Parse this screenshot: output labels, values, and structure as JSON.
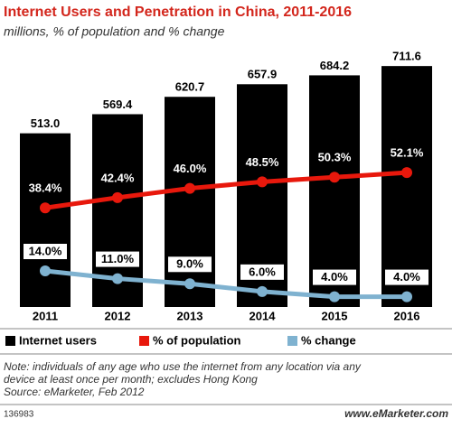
{
  "chart_data": {
    "type": "bar",
    "title": "Internet Users and Penetration in China, 2011-2016",
    "subtitle": "millions, % of population and % change",
    "categories": [
      "2011",
      "2012",
      "2013",
      "2014",
      "2015",
      "2016"
    ],
    "ylim": [
      0,
      800
    ],
    "y2lim": [
      0,
      105
    ],
    "series": [
      {
        "name": "Internet users",
        "type": "bar",
        "color": "#000000",
        "values": [
          513.0,
          569.4,
          620.7,
          657.9,
          684.2,
          711.6
        ],
        "value_labels": [
          "513.0",
          "569.4",
          "620.7",
          "657.9",
          "684.2",
          "711.6"
        ]
      },
      {
        "name": "% of population",
        "type": "line",
        "axis": "y2",
        "color": "#e8180c",
        "values": [
          38.4,
          42.4,
          46.0,
          48.5,
          50.3,
          52.1
        ],
        "value_labels": [
          "38.4%",
          "42.4%",
          "46.0%",
          "48.5%",
          "50.3%",
          "52.1%"
        ]
      },
      {
        "name": "% change",
        "type": "line",
        "axis": "y2",
        "color": "#7fb2d0",
        "values": [
          14.0,
          11.0,
          9.0,
          6.0,
          4.0,
          4.0
        ],
        "value_labels": [
          "14.0%",
          "11.0%",
          "9.0%",
          "6.0%",
          "4.0%",
          "4.0%"
        ]
      }
    ],
    "legend": "bottom",
    "note": [
      "Note: individuals of any age who use the internet from any location via any",
      "device at least once per month; excludes Hong Kong"
    ],
    "source": "Source: eMarketer, Feb 2012",
    "chart_id": "136983",
    "brand": "www.eMarketer.com"
  }
}
